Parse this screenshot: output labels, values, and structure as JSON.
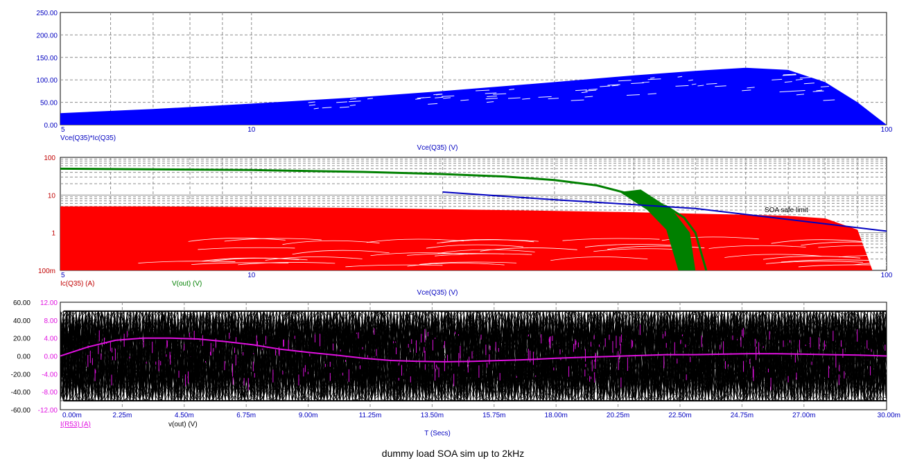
{
  "caption": "dummy load SOA sim up to 2kHz",
  "colors": {
    "blue": "#0000ff",
    "red": "#ff0000",
    "green": "#008000",
    "black": "#000000",
    "magenta": "#e010e0",
    "grid": "#8c8c8c",
    "axis_text_blue": "#0000c0",
    "axis_text_red": "#c00000"
  },
  "chart_data": [
    {
      "type": "area",
      "xscale": "log",
      "xlim": [
        5,
        100
      ],
      "ylim": [
        0,
        250
      ],
      "y_ticks": [
        "0.00",
        "50.00",
        "100.00",
        "150.00",
        "200.00",
        "250.00"
      ],
      "x_ticks": [
        "5",
        "10",
        "100"
      ],
      "xlabel": "Vce(Q35) (V)",
      "series": [
        {
          "name": "Vce(Q35)*Ic(Q35)",
          "color": "#0000ff",
          "x": [
            5,
            7,
            10,
            15,
            20,
            30,
            40,
            50,
            60,
            70,
            80,
            90,
            100
          ],
          "upper": [
            26,
            35,
            47,
            62,
            75,
            95,
            110,
            120,
            127,
            122,
            95,
            50,
            0
          ],
          "lower": [
            0,
            0,
            0,
            0,
            0,
            0,
            0,
            0,
            0,
            0,
            0,
            0,
            0
          ]
        }
      ]
    },
    {
      "type": "area",
      "xscale": "log",
      "yscale": "log",
      "xlim": [
        5,
        100
      ],
      "ylim": [
        0.1,
        100
      ],
      "y_ticks": [
        "100m",
        "1",
        "10",
        "100"
      ],
      "x_ticks": [
        "5",
        "10",
        "100"
      ],
      "xlabel": "Vce(Q35) (V)",
      "annotation": "SOA safe limit",
      "series": [
        {
          "name": "Ic(Q35) (A)",
          "color": "#ff0000",
          "kind": "band",
          "x": [
            5,
            7,
            10,
            15,
            20,
            30,
            40,
            50,
            60,
            70,
            80,
            90,
            95
          ],
          "upper": [
            5,
            5,
            4.8,
            4.5,
            4.2,
            3.8,
            3.5,
            3.2,
            3.0,
            2.8,
            2.4,
            1.2,
            0.1
          ],
          "lower": [
            0.1,
            0.1,
            0.1,
            0.1,
            0.1,
            0.1,
            0.1,
            0.1,
            0.1,
            0.1,
            0.1,
            0.1,
            0.1
          ]
        },
        {
          "name": "V(out) (V)",
          "color": "#008000",
          "kind": "line",
          "x": [
            5,
            10,
            15,
            20,
            25,
            30,
            35,
            40,
            45,
            48,
            50,
            52
          ],
          "y": [
            50,
            46,
            41,
            36,
            31,
            25,
            18,
            10,
            5,
            2.5,
            1,
            0.1
          ]
        },
        {
          "name": "SOA safe limit",
          "color": "#0000c0",
          "kind": "line",
          "x": [
            20,
            30,
            50,
            100
          ],
          "y": [
            12,
            7.5,
            4.4,
            1.1
          ]
        }
      ]
    },
    {
      "type": "line",
      "xlim": [
        0,
        30
      ],
      "x_ticks": [
        "0.00m",
        "2.25m",
        "4.50m",
        "6.75m",
        "9.00m",
        "11.25m",
        "13.50m",
        "15.75m",
        "18.00m",
        "20.25m",
        "22.50m",
        "24.75m",
        "27.00m",
        "30.00m"
      ],
      "xlabel": "T (Secs)",
      "y_left_ticks": [
        "-60.00",
        "-40.00",
        "-20.00",
        "0.00",
        "20.00",
        "40.00",
        "60.00"
      ],
      "y_right_ticks": [
        "-12.00",
        "-8.00",
        "-4.00",
        "0.00",
        "4.00",
        "8.00",
        "12.00"
      ],
      "ylim_left": [
        -60,
        60
      ],
      "ylim_right": [
        -12,
        12
      ],
      "series": [
        {
          "name": "I(R53) (A)",
          "color": "#e010e0",
          "axis": "right",
          "t": [
            0,
            1,
            2,
            3,
            4,
            5,
            6,
            7,
            8,
            9,
            10,
            11,
            12,
            13,
            14,
            15,
            16,
            17,
            18,
            19,
            20,
            21,
            22,
            23,
            24,
            25,
            26,
            27,
            28,
            29,
            30
          ],
          "y": [
            0,
            2,
            3.5,
            4,
            4,
            3.8,
            3.2,
            2.5,
            1.5,
            0.8,
            0.2,
            -0.5,
            -1.0,
            -1.2,
            -1.3,
            -1.2,
            -1.0,
            -0.8,
            -0.5,
            -0.3,
            -0.1,
            0.1,
            0.3,
            0.3,
            0.4,
            0.5,
            0.5,
            0.4,
            0.3,
            0.2,
            0.0
          ]
        },
        {
          "name": "v(out) (V)",
          "color": "#000000",
          "axis": "left",
          "envelope": [
            -50,
            50
          ]
        }
      ]
    }
  ]
}
